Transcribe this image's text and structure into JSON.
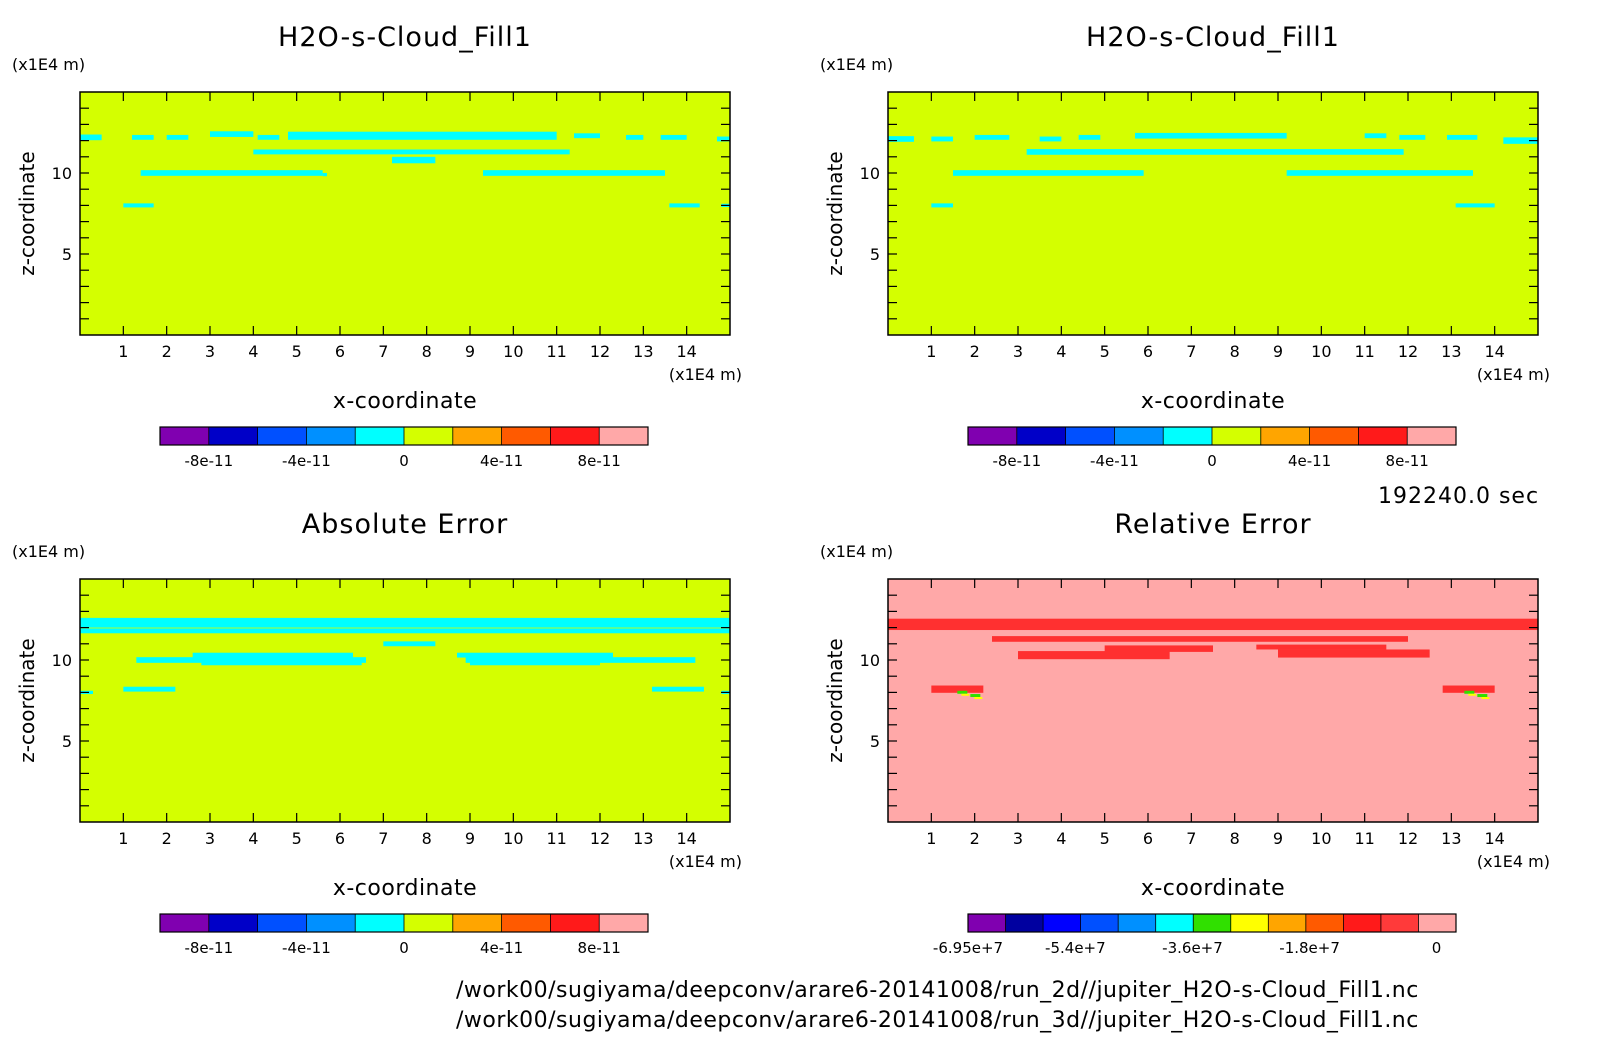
{
  "timestamp": "192240.0 sec",
  "file_paths": [
    "/work00/sugiyama/deepconv/arare6-20141008/run_2d//jupiter_H2O-s-Cloud_Fill1.nc",
    "/work00/sugiyama/deepconv/arare6-20141008/run_3d//jupiter_H2O-s-Cloud_Fill1.nc"
  ],
  "colors": {
    "field": "#d4ff00",
    "cloud": "#00ffff",
    "rel_background": "#ffa8a8",
    "rel_cloud": "#ff3030",
    "frame": "#000000"
  },
  "chart_data": [
    {
      "type": "heatmap",
      "title": "H2O-s-Cloud_Fill1",
      "xlabel": "x-coordinate",
      "ylabel": "z-coordinate",
      "x_unit": "(x1E4 m)",
      "y_unit": "(x1E4 m)",
      "xlim": [
        0,
        15
      ],
      "ylim": [
        0,
        15
      ],
      "x_ticks": [
        "1",
        "2",
        "3",
        "4",
        "5",
        "6",
        "7",
        "8",
        "9",
        "10",
        "11",
        "12",
        "13",
        "14"
      ],
      "y_ticks": [
        "5",
        "10"
      ],
      "colorbar": {
        "colors": [
          "#8000b0",
          "#0000c8",
          "#0050ff",
          "#0090ff",
          "#00ffff",
          "#d4ff00",
          "#ffa500",
          "#ff5a00",
          "#ff1a1a",
          "#ffa8a8"
        ],
        "labels": [
          "-8e-11",
          "-4e-11",
          "0",
          "4e-11",
          "8e-11"
        ]
      }
    },
    {
      "type": "heatmap",
      "title": "H2O-s-Cloud_Fill1",
      "xlabel": "x-coordinate",
      "ylabel": "z-coordinate",
      "x_unit": "(x1E4 m)",
      "y_unit": "(x1E4 m)",
      "xlim": [
        0,
        15
      ],
      "ylim": [
        0,
        15
      ],
      "x_ticks": [
        "1",
        "2",
        "3",
        "4",
        "5",
        "6",
        "7",
        "8",
        "9",
        "10",
        "11",
        "12",
        "13",
        "14"
      ],
      "y_ticks": [
        "5",
        "10"
      ],
      "colorbar": {
        "colors": [
          "#8000b0",
          "#0000c8",
          "#0050ff",
          "#0090ff",
          "#00ffff",
          "#d4ff00",
          "#ffa500",
          "#ff5a00",
          "#ff1a1a",
          "#ffa8a8"
        ],
        "labels": [
          "-8e-11",
          "-4e-11",
          "0",
          "4e-11",
          "8e-11"
        ]
      }
    },
    {
      "type": "heatmap",
      "title": "Absolute Error",
      "xlabel": "x-coordinate",
      "ylabel": "z-coordinate",
      "x_unit": "(x1E4 m)",
      "y_unit": "(x1E4 m)",
      "xlim": [
        0,
        15
      ],
      "ylim": [
        0,
        15
      ],
      "x_ticks": [
        "1",
        "2",
        "3",
        "4",
        "5",
        "6",
        "7",
        "8",
        "9",
        "10",
        "11",
        "12",
        "13",
        "14"
      ],
      "y_ticks": [
        "5",
        "10"
      ],
      "colorbar": {
        "colors": [
          "#8000b0",
          "#0000c8",
          "#0050ff",
          "#0090ff",
          "#00ffff",
          "#d4ff00",
          "#ffa500",
          "#ff5a00",
          "#ff1a1a",
          "#ffa8a8"
        ],
        "labels": [
          "-8e-11",
          "-4e-11",
          "0",
          "4e-11",
          "8e-11"
        ]
      }
    },
    {
      "type": "heatmap",
      "title": "Relative Error",
      "xlabel": "x-coordinate",
      "ylabel": "z-coordinate",
      "x_unit": "(x1E4 m)",
      "y_unit": "(x1E4 m)",
      "xlim": [
        0,
        15
      ],
      "ylim": [
        0,
        15
      ],
      "x_ticks": [
        "1",
        "2",
        "3",
        "4",
        "5",
        "6",
        "7",
        "8",
        "9",
        "10",
        "11",
        "12",
        "13",
        "14"
      ],
      "y_ticks": [
        "5",
        "10"
      ],
      "colorbar": {
        "colors": [
          "#8000b0",
          "#0000a0",
          "#0000ff",
          "#0050ff",
          "#0090ff",
          "#00ffff",
          "#30e000",
          "#ffff00",
          "#ffa500",
          "#ff5a00",
          "#ff1a1a",
          "#ff3a3a",
          "#ffa8a8"
        ],
        "labels": [
          "-6.95e+7",
          "-5.4e+7",
          "-3.6e+7",
          "-1.8e+7",
          "0"
        ]
      }
    }
  ]
}
